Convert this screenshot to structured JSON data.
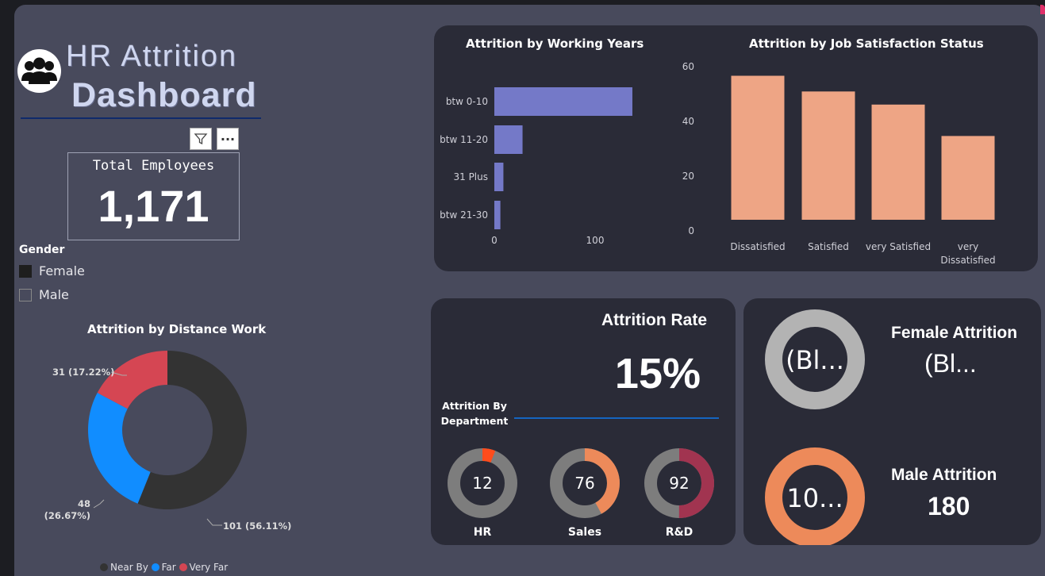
{
  "header": {
    "title_line1": "HR Attrition",
    "title_line2": "Dashboard"
  },
  "colors": {
    "canvas": "#484a5c",
    "panel": "#2a2b37",
    "bar_blue": "#7479c8",
    "bar_salmon": "#eea585",
    "near_by": "#333333",
    "far": "#118dff",
    "very_far": "#d54653",
    "orange": "#ed8a5a",
    "maroon": "#a13450"
  },
  "icons": {
    "logo": "people-group-icon",
    "filter": "filter-icon",
    "more": "more-options-icon"
  },
  "toolbar": {
    "more_label": "···"
  },
  "total_employees": {
    "label": "Total Employees",
    "value": "1,171"
  },
  "gender_slicer": {
    "title": "Gender",
    "items": [
      {
        "label": "Female",
        "checked": true
      },
      {
        "label": "Male",
        "checked": false
      }
    ]
  },
  "chart_data": [
    {
      "type": "bar",
      "orientation": "horizontal",
      "title": "Attrition by Working Years",
      "categories": [
        "btw 0-10",
        "btw 11-20",
        "31 Plus",
        "btw 21-30"
      ],
      "values": [
        137,
        28,
        9,
        6
      ],
      "xlim": [
        0,
        150
      ],
      "xticks": [
        "0",
        "100"
      ]
    },
    {
      "type": "bar",
      "title": "Attrition by Job Satisfaction Status",
      "categories": [
        "Dissatisfied",
        "Satisfied",
        "very Satisfied",
        "very Dissatisfied"
      ],
      "values": [
        55,
        49,
        44,
        32
      ],
      "ylim": [
        0,
        60
      ],
      "yticks": [
        "0",
        "20",
        "40",
        "60"
      ]
    },
    {
      "type": "pie",
      "variant": "donut",
      "title": "Attrition by Distance Work",
      "categories": [
        "Near By",
        "Far",
        "Very Far"
      ],
      "values": [
        101,
        48,
        31
      ],
      "labels": [
        "101 (56.11%)",
        "48 (26.67%)",
        "31 (17.22%)"
      ],
      "legend": [
        "Near By",
        "Far",
        "Very Far"
      ]
    },
    {
      "type": "pie",
      "variant": "donut-gauge",
      "title": "Attrition By Department",
      "items": [
        {
          "label": "HR",
          "value": "12",
          "fraction": 0.06
        },
        {
          "label": "Sales",
          "value": "76",
          "fraction": 0.42
        },
        {
          "label": "R&D",
          "value": "92",
          "fraction": 0.5
        }
      ]
    }
  ],
  "distance_labels": {
    "very_far": "31 (17.22%)",
    "far_line1": "48",
    "far_line2": "(26.67%)",
    "near_by": "101 (56.11%)"
  },
  "distance_legend": {
    "near_by": "Near By",
    "far": "Far",
    "very_far": "Very Far"
  },
  "job_sat_labels": {
    "c1": "Dissatisfied",
    "c2": "Satisfied",
    "c3": "very Satisfied",
    "c4_line1": "very",
    "c4_line2": "Dissatisfied"
  },
  "attrition_rate": {
    "title": "Attrition Rate",
    "value": "15%",
    "dept_title_line1": "Attrition By",
    "dept_title_line2": "Department"
  },
  "female_attrition": {
    "title": "Female Attrition",
    "value": "(Bl...",
    "donut_value": "(Bl..."
  },
  "male_attrition": {
    "title": "Male Attrition",
    "value": "180",
    "donut_value": "10..."
  }
}
